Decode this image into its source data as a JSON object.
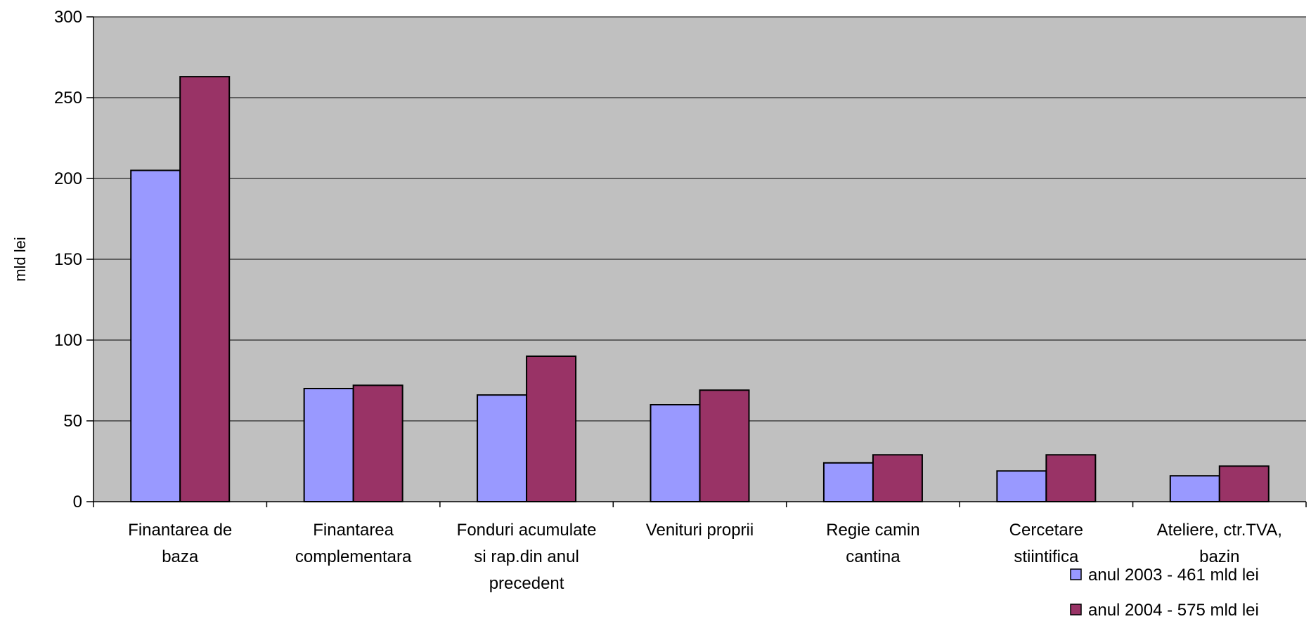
{
  "chart_data": {
    "type": "bar",
    "title": "",
    "xlabel": "",
    "ylabel": "mld lei",
    "ylim": [
      0,
      300
    ],
    "yticks": [
      0,
      50,
      100,
      150,
      200,
      250,
      300
    ],
    "grid": true,
    "legend_position": "bottom-right",
    "categories": [
      [
        "Finantarea de",
        "baza"
      ],
      [
        "Finantarea",
        "complementara"
      ],
      [
        "Fonduri acumulate",
        "si rap.din anul",
        "precedent"
      ],
      [
        "Venituri proprii"
      ],
      [
        "Regie camin",
        "cantina"
      ],
      [
        "Cercetare",
        "stiintifica"
      ],
      [
        "Ateliere, ctr.TVA,",
        "bazin"
      ]
    ],
    "series": [
      {
        "name": "anul 2003 - 461 mld lei",
        "color": "#9999ff",
        "values": [
          205,
          70,
          66,
          60,
          24,
          19,
          16
        ]
      },
      {
        "name": "anul 2004 - 575 mld lei",
        "color": "#993366",
        "values": [
          263,
          72,
          90,
          69,
          29,
          29,
          22
        ]
      }
    ],
    "plot_background": "#c0c0c0"
  }
}
